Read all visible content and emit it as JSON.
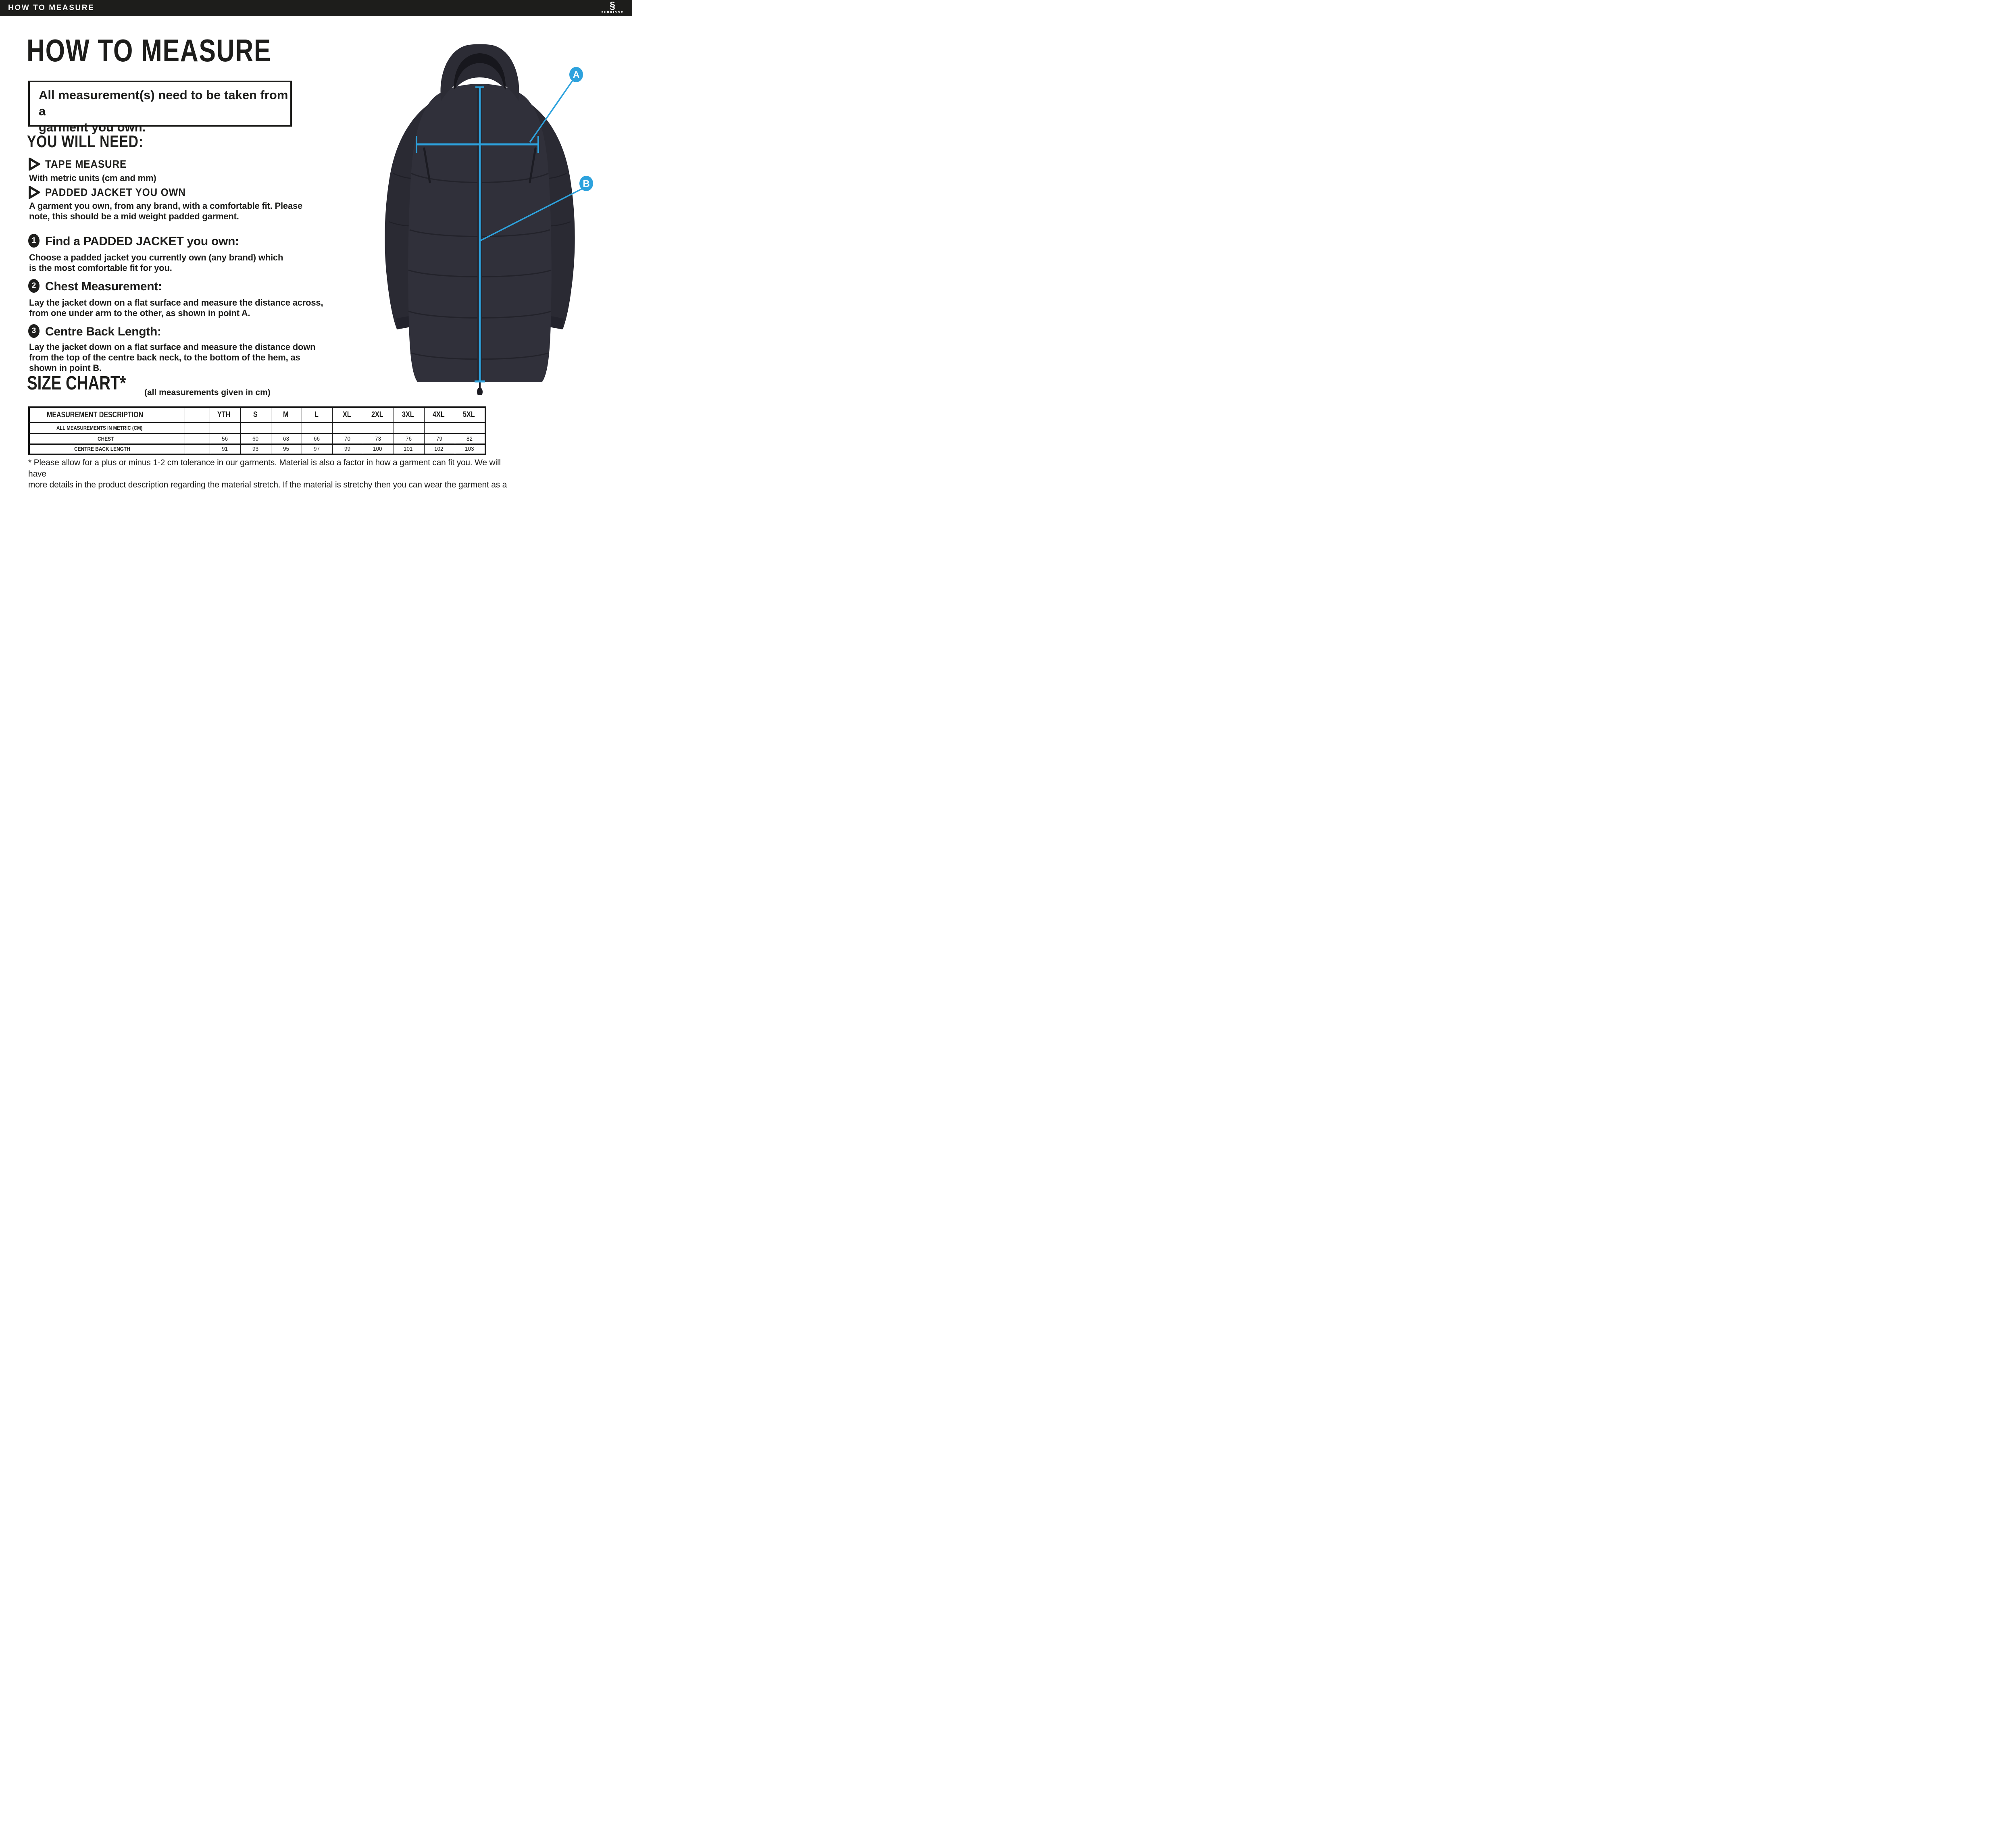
{
  "header": {
    "bar_title": "HOW TO MEASURE",
    "brand": {
      "name": "SURRIDGE",
      "icon": "surridge-double-s-logo",
      "icon_glyph": "§"
    }
  },
  "page": {
    "title": "HOW TO MEASURE",
    "notice": "All measurement(s) need to be taken from a\ngarment you own.",
    "you_will_need": {
      "heading": "YOU WILL NEED:",
      "items": [
        {
          "label": "TAPE MEASURE",
          "description": "With metric units (cm and mm)"
        },
        {
          "label": "PADDED JACKET YOU OWN",
          "description": "A garment you own, from any brand, with a comfortable fit. Please\nnote, this should be a mid weight padded garment."
        }
      ]
    },
    "steps": [
      {
        "number": "1",
        "heading": "Find a PADDED JACKET you own:",
        "body": "Choose a padded jacket you currently own (any brand) which\nis the most comfortable fit for you."
      },
      {
        "number": "2",
        "heading": "Chest Measurement:",
        "body": "Lay the jacket down on a flat surface and measure the distance across,\nfrom one under arm to the other, as shown in point A."
      },
      {
        "number": "3",
        "heading": "Centre Back Length:",
        "body": "Lay the jacket down on a flat surface and measure the distance down\nfrom the top of the centre back neck, to the bottom of the hem, as\nshown in point B."
      }
    ],
    "size_chart": {
      "heading": "SIZE CHART*",
      "subheading": "(all measurements given in cm)",
      "columns": [
        "MEASUREMENT DESCRIPTION",
        "",
        "YTH",
        "S",
        "M",
        "L",
        "XL",
        "2XL",
        "3XL",
        "4XL",
        "5XL"
      ],
      "rows": [
        {
          "label": "ALL MEASUREMENTS IN METRIC (CM)",
          "values": [
            "",
            "",
            "",
            "",
            "",
            "",
            "",
            "",
            ""
          ]
        },
        {
          "label": "CHEST",
          "values": [
            "56",
            "60",
            "63",
            "66",
            "70",
            "73",
            "76",
            "79",
            "82"
          ]
        },
        {
          "label": "CENTRE BACK LENGTH",
          "values": [
            "91",
            "93",
            "95",
            "97",
            "99",
            "100",
            "101",
            "102",
            "103"
          ]
        }
      ]
    },
    "footnote": "* Please allow for a plus or minus 1-2 cm tolerance in our garments. Material is also a factor in how a garment can fit you. We will have\nmore details in the product description regarding the material stretch. If the material is stretchy then you can wear the garment as a\ntighter fit as the material will stretch. Please be aware that the above measurements are of the garment and not of your body.",
    "diagram": {
      "labels": [
        "A",
        "B"
      ],
      "accent_color": "#2DA2DD",
      "jacket_color": "#30303A"
    }
  }
}
